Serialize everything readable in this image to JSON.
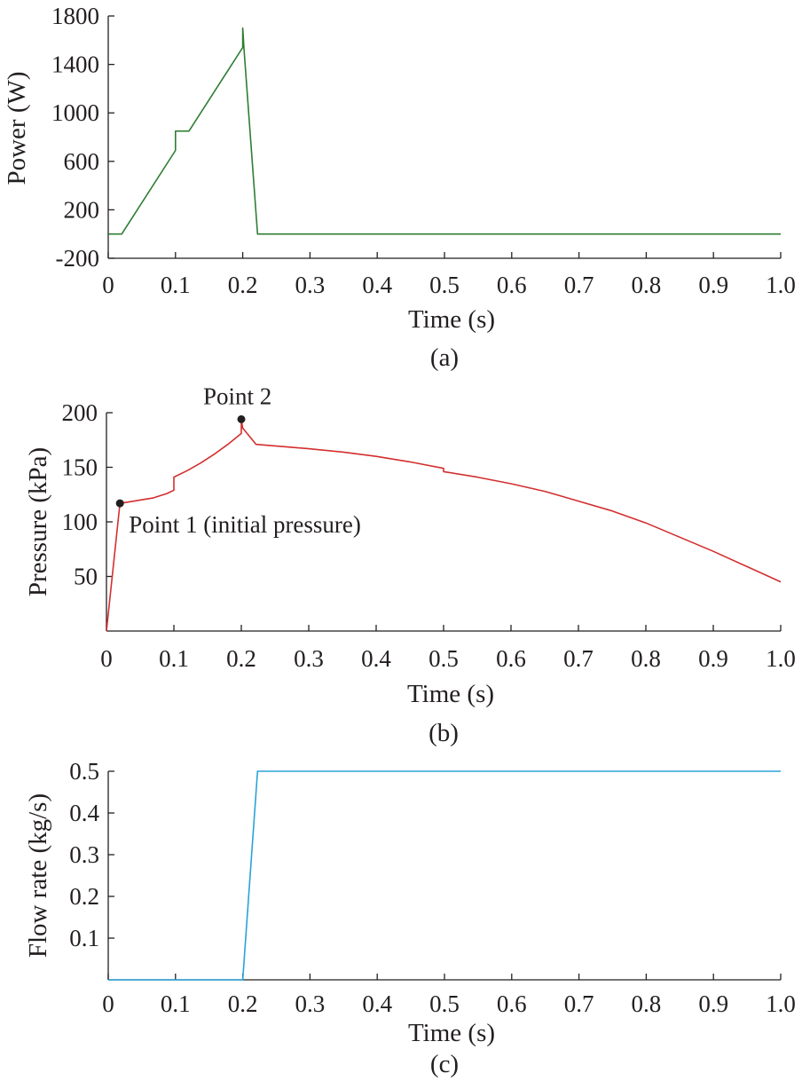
{
  "chart_data": [
    {
      "type": "line",
      "caption": "(a)",
      "xlabel": "Time (s)",
      "ylabel": "Power (W)",
      "xlim": [
        0,
        1.0
      ],
      "ylim": [
        -200,
        1800
      ],
      "x_ticks": [
        0,
        0.1,
        0.2,
        0.3,
        0.4,
        0.5,
        0.6,
        0.7,
        0.8,
        0.9,
        1.0
      ],
      "x_tick_labels": [
        "0",
        "0.1",
        "0.2",
        "0.3",
        "0.4",
        "0.5",
        "0.6",
        "0.7",
        "0.8",
        "0.9",
        "1.0"
      ],
      "y_ticks": [
        -200,
        200,
        600,
        1000,
        1400,
        1800
      ],
      "y_tick_labels": [
        "-200",
        "200",
        "600",
        "1000",
        "1400",
        "1800"
      ],
      "grid": false,
      "color": "#2e7d32",
      "series": [
        {
          "x": [
            0,
            0.02,
            0.1,
            0.1,
            0.12,
            0.2,
            0.2,
            0.202,
            0.222,
            1.0
          ],
          "y": [
            0,
            0,
            690,
            850,
            850,
            1540,
            1700,
            1520,
            0,
            0
          ]
        }
      ]
    },
    {
      "type": "line",
      "caption": "(b)",
      "xlabel": "Time (s)",
      "ylabel": "Pressure (kPa)",
      "xlim": [
        0,
        1.0
      ],
      "ylim": [
        0,
        200
      ],
      "x_ticks": [
        0,
        0.1,
        0.2,
        0.3,
        0.4,
        0.5,
        0.6,
        0.7,
        0.8,
        0.9,
        1.0
      ],
      "x_tick_labels": [
        "0",
        "0.1",
        "0.2",
        "0.3",
        "0.4",
        "0.5",
        "0.6",
        "0.7",
        "0.8",
        "0.9",
        "1.0"
      ],
      "y_ticks": [
        50,
        100,
        150,
        200
      ],
      "y_tick_labels": [
        "50",
        "100",
        "150",
        "200"
      ],
      "grid": false,
      "color": "#d32f2f",
      "series": [
        {
          "x": [
            0,
            0.02,
            0.03,
            0.05,
            0.07,
            0.09,
            0.1,
            0.1,
            0.12,
            0.14,
            0.16,
            0.18,
            0.2,
            0.2,
            0.202,
            0.222,
            0.26,
            0.3,
            0.35,
            0.4,
            0.45,
            0.5,
            0.5,
            0.55,
            0.6,
            0.65,
            0.7,
            0.75,
            0.8,
            0.85,
            0.9,
            0.95,
            1.0
          ],
          "y": [
            0,
            117,
            118,
            120,
            122,
            126,
            129,
            141,
            147,
            154,
            162,
            171,
            181,
            194,
            186,
            171,
            169,
            167,
            164,
            160,
            155,
            149,
            146,
            141,
            135,
            128,
            119,
            110,
            99,
            86,
            73,
            59,
            45
          ]
        }
      ],
      "markers": [
        {
          "x": 0.02,
          "y": 117,
          "label": "Point 1 (initial pressure)"
        },
        {
          "x": 0.2,
          "y": 194,
          "label": "Point 2"
        }
      ]
    },
    {
      "type": "line",
      "caption": "(c)",
      "xlabel": "Time (s)",
      "ylabel": "Flow rate (kg/s)",
      "xlim": [
        0,
        1.0
      ],
      "ylim": [
        0,
        0.5
      ],
      "x_ticks": [
        0,
        0.1,
        0.2,
        0.3,
        0.4,
        0.5,
        0.6,
        0.7,
        0.8,
        0.9,
        1.0
      ],
      "x_tick_labels": [
        "0",
        "0.1",
        "0.2",
        "0.3",
        "0.4",
        "0.5",
        "0.6",
        "0.7",
        "0.8",
        "0.9",
        "1.0"
      ],
      "y_ticks": [
        0.1,
        0.2,
        0.3,
        0.4,
        0.5
      ],
      "y_tick_labels": [
        "0.1",
        "0.2",
        "0.3",
        "0.4",
        "0.5"
      ],
      "grid": false,
      "color": "#29a3d6",
      "series": [
        {
          "x": [
            0,
            0.2,
            0.222,
            1.0
          ],
          "y": [
            0,
            0,
            0.5,
            0.5
          ]
        }
      ]
    }
  ]
}
